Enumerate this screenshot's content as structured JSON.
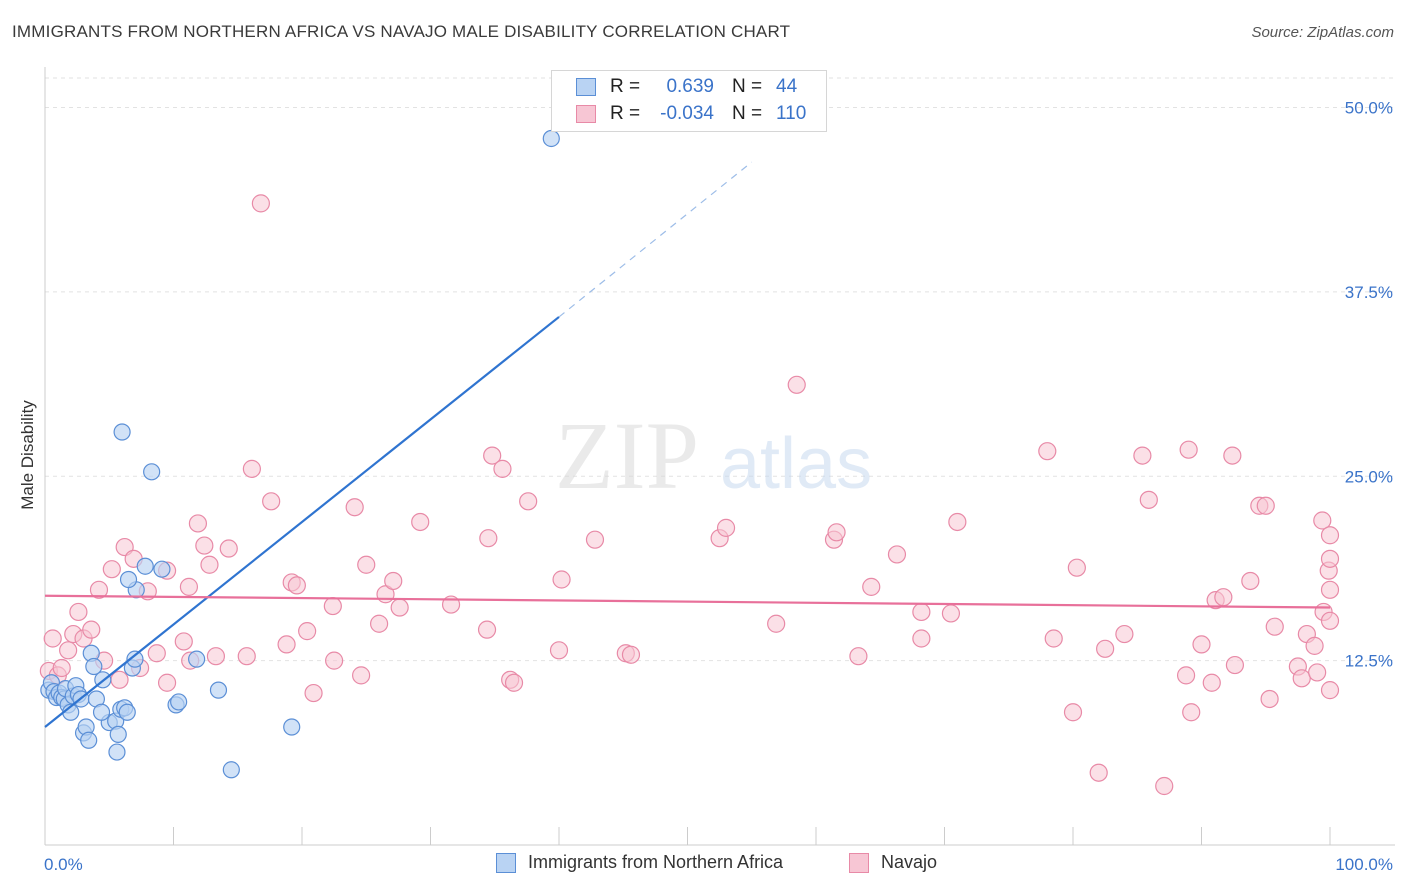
{
  "title": "IMMIGRANTS FROM NORTHERN AFRICA VS NAVAJO MALE DISABILITY CORRELATION CHART",
  "source": "Source: ZipAtlas.com",
  "watermark": {
    "zip": "ZIP",
    "atlas": "atlas"
  },
  "legend_top": {
    "rows": [
      {
        "r_label": "R =",
        "r_value": "0.639",
        "n_label": "N =",
        "n_value": "44"
      },
      {
        "r_label": "R =",
        "r_value": "-0.034",
        "n_label": "N =",
        "n_value": "110"
      }
    ]
  },
  "legend_bottom": {
    "items": [
      {
        "label": "Immigrants from Northern Africa"
      },
      {
        "label": "Navajo"
      }
    ]
  },
  "colors": {
    "blue_fill": "#b9d3f3",
    "blue_stroke": "#5b8fd6",
    "blue_line": "#2f74d0",
    "pink_fill": "#f7c6d4",
    "pink_stroke": "#e88aa7",
    "pink_line": "#e8709a",
    "tick_label": "#3a73c9",
    "grid": "#e2e2e2",
    "axis": "#cccccc"
  },
  "chart_data": {
    "type": "scatter",
    "title": "IMMIGRANTS FROM NORTHERN AFRICA VS NAVAJO MALE DISABILITY CORRELATION CHART",
    "xlabel": "",
    "ylabel": "Male Disability",
    "xlim": [
      0,
      100
    ],
    "ylim": [
      0,
      52
    ],
    "x_tick_labels": [
      "0.0%",
      "100.0%"
    ],
    "y_ticks": [
      12.5,
      25.0,
      37.5,
      50.0
    ],
    "y_tick_labels": [
      "12.5%",
      "25.0%",
      "37.5%",
      "50.0%"
    ],
    "grid": true,
    "legend_position": "top-center",
    "series": [
      {
        "name": "Immigrants from Northern Africa",
        "color": "#b9d3f3",
        "r": 0.639,
        "n": 44,
        "trend": {
          "x0": 0,
          "y0": 8.0,
          "x1": 40,
          "y1": 35.8,
          "dash_to": {
            "x": 55,
            "y": 46.3
          }
        },
        "points": [
          [
            0.3,
            10.5
          ],
          [
            0.5,
            11.0
          ],
          [
            0.7,
            10.4
          ],
          [
            0.9,
            10.0
          ],
          [
            1.1,
            10.3
          ],
          [
            1.3,
            10.0
          ],
          [
            1.5,
            9.9
          ],
          [
            1.6,
            10.6
          ],
          [
            1.8,
            9.5
          ],
          [
            2.0,
            9.0
          ],
          [
            2.2,
            10.1
          ],
          [
            2.4,
            10.8
          ],
          [
            2.6,
            10.2
          ],
          [
            2.8,
            9.9
          ],
          [
            3.0,
            7.6
          ],
          [
            3.2,
            8.0
          ],
          [
            3.4,
            7.1
          ],
          [
            3.6,
            13.0
          ],
          [
            3.8,
            12.1
          ],
          [
            4.0,
            9.9
          ],
          [
            4.5,
            11.2
          ],
          [
            5.0,
            8.3
          ],
          [
            5.5,
            8.4
          ],
          [
            5.7,
            7.5
          ],
          [
            5.6,
            6.3
          ],
          [
            5.9,
            9.2
          ],
          [
            6.0,
            28.0
          ],
          [
            6.2,
            9.3
          ],
          [
            6.4,
            9.0
          ],
          [
            6.8,
            12.0
          ],
          [
            7.0,
            12.6
          ],
          [
            7.1,
            17.3
          ],
          [
            7.8,
            18.9
          ],
          [
            8.3,
            25.3
          ],
          [
            9.1,
            18.7
          ],
          [
            10.2,
            9.5
          ],
          [
            10.4,
            9.7
          ],
          [
            11.8,
            12.6
          ],
          [
            13.5,
            10.5
          ],
          [
            14.5,
            5.1
          ],
          [
            19.2,
            8.0
          ],
          [
            39.4,
            47.9
          ],
          [
            6.5,
            18.0
          ],
          [
            4.4,
            9.0
          ]
        ]
      },
      {
        "name": "Navajo",
        "color": "#f7c6d4",
        "r": -0.034,
        "n": 110,
        "trend": {
          "x0": 0,
          "y0": 16.9,
          "x1": 100,
          "y1": 16.1
        },
        "points": [
          [
            0.3,
            11.8
          ],
          [
            0.6,
            14.0
          ],
          [
            1.0,
            11.5
          ],
          [
            1.3,
            12.0
          ],
          [
            1.8,
            13.2
          ],
          [
            2.2,
            14.3
          ],
          [
            2.6,
            15.8
          ],
          [
            3.0,
            14.0
          ],
          [
            3.6,
            14.6
          ],
          [
            4.2,
            17.3
          ],
          [
            4.6,
            12.5
          ],
          [
            5.2,
            18.7
          ],
          [
            5.8,
            11.2
          ],
          [
            6.2,
            20.2
          ],
          [
            6.9,
            19.4
          ],
          [
            7.4,
            12.0
          ],
          [
            8.0,
            17.2
          ],
          [
            8.7,
            13.0
          ],
          [
            9.5,
            18.6
          ],
          [
            9.5,
            11.0
          ],
          [
            10.8,
            13.8
          ],
          [
            11.3,
            12.5
          ],
          [
            11.2,
            17.5
          ],
          [
            11.9,
            21.8
          ],
          [
            12.4,
            20.3
          ],
          [
            12.8,
            19.0
          ],
          [
            13.3,
            12.8
          ],
          [
            14.3,
            20.1
          ],
          [
            15.7,
            12.8
          ],
          [
            16.1,
            25.5
          ],
          [
            16.8,
            43.5
          ],
          [
            17.6,
            23.3
          ],
          [
            18.8,
            13.6
          ],
          [
            19.2,
            17.8
          ],
          [
            19.6,
            17.6
          ],
          [
            20.4,
            14.5
          ],
          [
            20.9,
            10.3
          ],
          [
            22.4,
            16.2
          ],
          [
            22.5,
            12.5
          ],
          [
            24.1,
            22.9
          ],
          [
            24.6,
            11.5
          ],
          [
            25.0,
            19.0
          ],
          [
            26.0,
            15.0
          ],
          [
            26.5,
            17.0
          ],
          [
            27.1,
            17.9
          ],
          [
            27.6,
            16.1
          ],
          [
            29.2,
            21.9
          ],
          [
            31.6,
            16.3
          ],
          [
            34.4,
            14.6
          ],
          [
            34.5,
            20.8
          ],
          [
            34.8,
            26.4
          ],
          [
            35.6,
            25.5
          ],
          [
            36.2,
            11.2
          ],
          [
            36.5,
            11.0
          ],
          [
            37.6,
            23.3
          ],
          [
            40.0,
            13.2
          ],
          [
            40.2,
            18.0
          ],
          [
            42.8,
            20.7
          ],
          [
            45.2,
            13.0
          ],
          [
            45.6,
            12.9
          ],
          [
            52.5,
            20.8
          ],
          [
            53.0,
            21.5
          ],
          [
            56.9,
            15.0
          ],
          [
            58.5,
            31.2
          ],
          [
            61.4,
            20.7
          ],
          [
            61.6,
            21.2
          ],
          [
            63.3,
            12.8
          ],
          [
            64.3,
            17.5
          ],
          [
            66.3,
            19.7
          ],
          [
            68.2,
            15.8
          ],
          [
            68.2,
            14.0
          ],
          [
            70.5,
            15.7
          ],
          [
            71.0,
            21.9
          ],
          [
            78.0,
            26.7
          ],
          [
            78.5,
            14.0
          ],
          [
            80.0,
            9.0
          ],
          [
            80.3,
            18.8
          ],
          [
            82.0,
            4.9
          ],
          [
            82.5,
            13.3
          ],
          [
            84.0,
            14.3
          ],
          [
            85.4,
            26.4
          ],
          [
            85.9,
            23.4
          ],
          [
            87.1,
            4.0
          ],
          [
            88.8,
            11.5
          ],
          [
            89.0,
            26.8
          ],
          [
            89.2,
            9.0
          ],
          [
            90.0,
            13.6
          ],
          [
            90.8,
            11.0
          ],
          [
            91.1,
            16.6
          ],
          [
            91.7,
            16.8
          ],
          [
            92.4,
            26.4
          ],
          [
            92.6,
            12.2
          ],
          [
            93.8,
            17.9
          ],
          [
            94.5,
            23.0
          ],
          [
            95.0,
            23.0
          ],
          [
            95.3,
            9.9
          ],
          [
            95.7,
            14.8
          ],
          [
            97.5,
            12.1
          ],
          [
            97.8,
            11.3
          ],
          [
            98.2,
            14.3
          ],
          [
            98.8,
            13.5
          ],
          [
            99.0,
            11.7
          ],
          [
            99.4,
            22.0
          ],
          [
            99.5,
            15.8
          ],
          [
            99.9,
            18.6
          ],
          [
            100.0,
            15.2
          ],
          [
            100.0,
            17.3
          ],
          [
            100.0,
            19.4
          ],
          [
            100.0,
            21.0
          ],
          [
            100.0,
            10.5
          ]
        ]
      }
    ]
  }
}
